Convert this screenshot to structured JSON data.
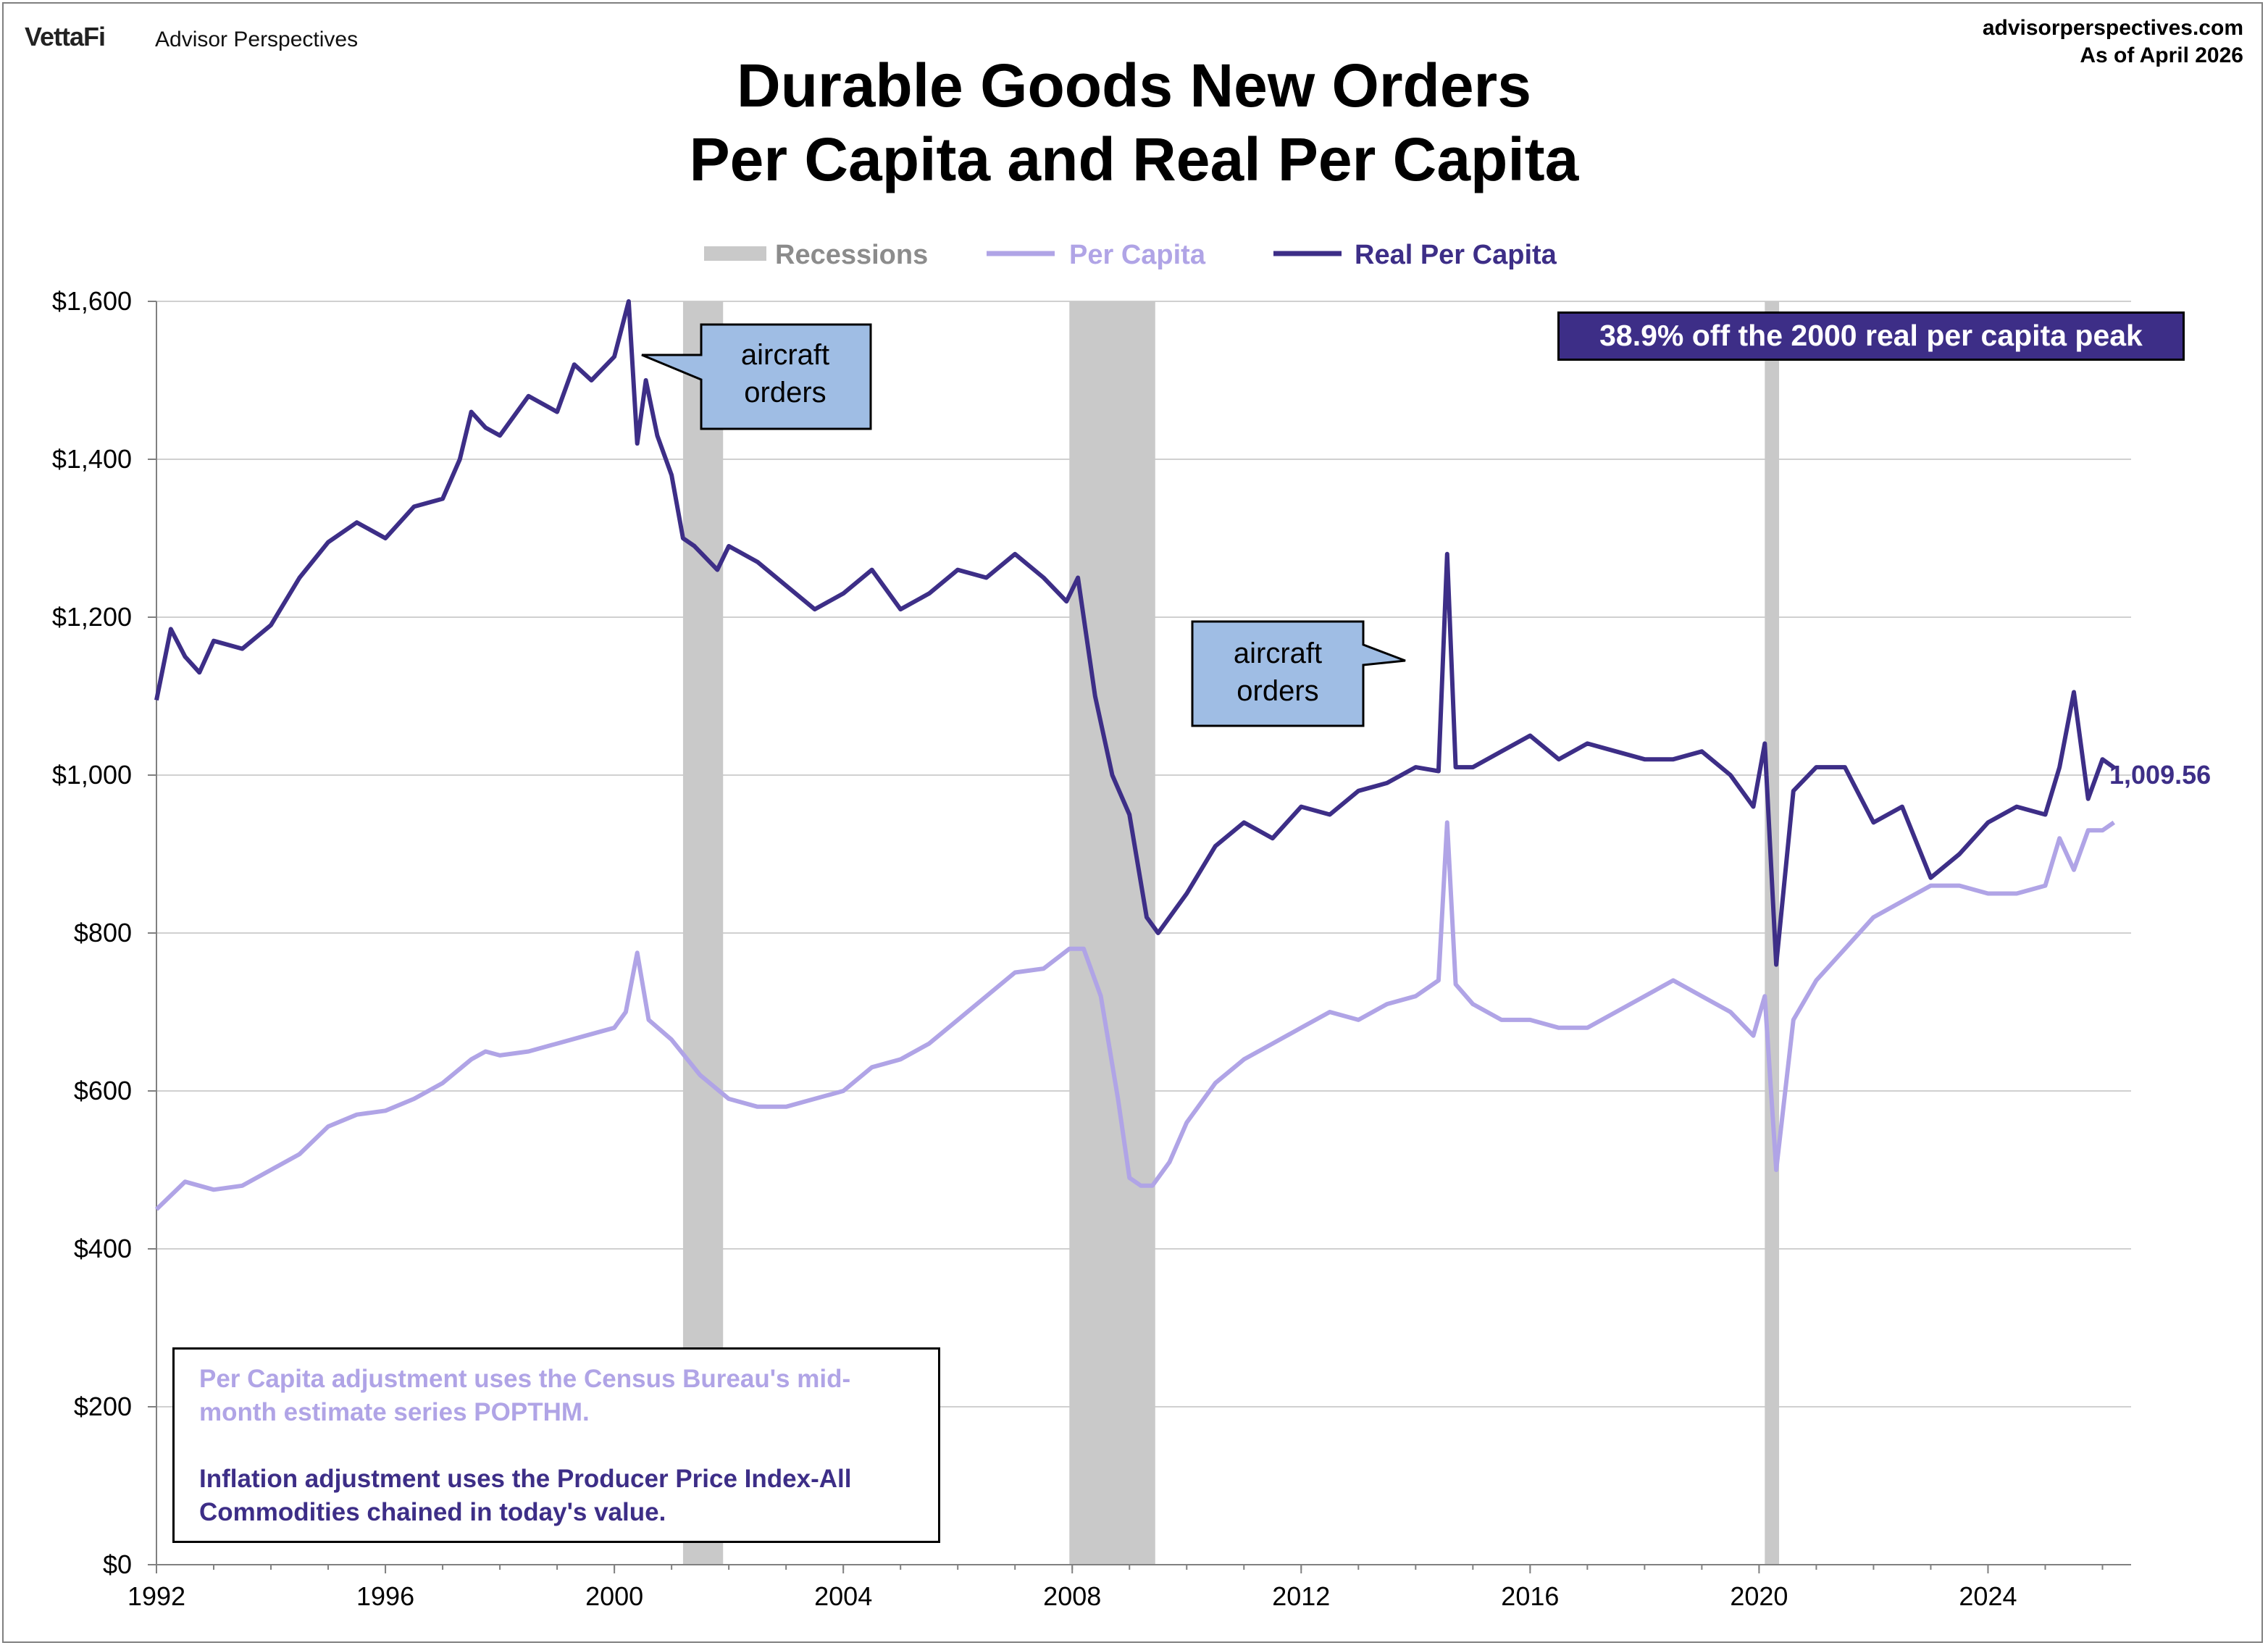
{
  "header": {
    "brand": "VettaFi",
    "brand_sub": "Advisor Perspectives",
    "site": "advisorperspectives.com",
    "as_of": "As of April 2026"
  },
  "colors": {
    "per_capita": "#b0a4e6",
    "real_per_capita": "#3d2e87",
    "recession": "#c9c9c9",
    "callout_fill": "#9fbde4"
  },
  "annotations": {
    "peak_note": "38.9% off the 2000 real per capita peak",
    "last_value": "1,009.56",
    "callout_1": "aircraft\norders",
    "callout_2": "aircraft\norders",
    "note_per_capita": "Per Capita adjustment uses the Census Bureau's mid-month estimate series POPTHM.",
    "note_inflation": "Inflation adjustment uses the Producer Price Index-All Commodities chained in today's value."
  },
  "chart_data": {
    "type": "line",
    "title": "Durable Goods New Orders",
    "subtitle": "Per Capita and Real Per Capita",
    "xlim": [
      1992,
      2026.5
    ],
    "ylim": [
      0,
      1600
    ],
    "x_ticks": [
      "1992",
      "1996",
      "2000",
      "2004",
      "2008",
      "2012",
      "2016",
      "2020",
      "2024"
    ],
    "y_ticks": [
      "$0",
      "$200",
      "$400",
      "$600",
      "$800",
      "$1,000",
      "$1,200",
      "$1,400",
      "$1,600"
    ],
    "grid": true,
    "legend": [
      "Recessions",
      "Per Capita",
      "Real Per Capita"
    ],
    "recessions": [
      [
        2001.2,
        2001.9
      ],
      [
        2007.95,
        2009.45
      ],
      [
        2020.1,
        2020.35
      ]
    ],
    "series": [
      {
        "name": "Real Per Capita",
        "x": [
          1992.0,
          1992.25,
          1992.5,
          1992.75,
          1993.0,
          1993.5,
          1994.0,
          1994.5,
          1995.0,
          1995.5,
          1996.0,
          1996.5,
          1997.0,
          1997.3,
          1997.5,
          1997.75,
          1998.0,
          1998.5,
          1999.0,
          1999.3,
          1999.6,
          2000.0,
          2000.25,
          2000.4,
          2000.55,
          2000.75,
          2001.0,
          2001.2,
          2001.4,
          2001.8,
          2002.0,
          2002.5,
          2003.0,
          2003.5,
          2004.0,
          2004.5,
          2005.0,
          2005.5,
          2006.0,
          2006.5,
          2007.0,
          2007.5,
          2007.9,
          2008.1,
          2008.4,
          2008.7,
          2009.0,
          2009.3,
          2009.5,
          2009.8,
          2010.0,
          2010.5,
          2011.0,
          2011.5,
          2012.0,
          2012.5,
          2013.0,
          2013.5,
          2014.0,
          2014.4,
          2014.55,
          2014.7,
          2015.0,
          2015.5,
          2016.0,
          2016.5,
          2017.0,
          2017.5,
          2018.0,
          2018.5,
          2019.0,
          2019.5,
          2019.9,
          2020.1,
          2020.3,
          2020.6,
          2021.0,
          2021.5,
          2022.0,
          2022.5,
          2023.0,
          2023.5,
          2024.0,
          2024.5,
          2025.0,
          2025.25,
          2025.5,
          2025.75,
          2026.0,
          2026.2
        ],
        "values": [
          1095,
          1185,
          1150,
          1130,
          1170,
          1160,
          1190,
          1250,
          1295,
          1320,
          1300,
          1340,
          1350,
          1400,
          1460,
          1440,
          1430,
          1480,
          1460,
          1520,
          1500,
          1530,
          1600,
          1420,
          1500,
          1430,
          1380,
          1300,
          1290,
          1260,
          1290,
          1270,
          1240,
          1210,
          1230,
          1260,
          1210,
          1230,
          1260,
          1250,
          1280,
          1250,
          1220,
          1250,
          1100,
          1000,
          950,
          820,
          800,
          830,
          850,
          910,
          940,
          920,
          960,
          950,
          980,
          990,
          1010,
          1005,
          1280,
          1010,
          1010,
          1030,
          1050,
          1020,
          1040,
          1030,
          1020,
          1020,
          1030,
          1000,
          960,
          1040,
          760,
          980,
          1010,
          1010,
          940,
          960,
          870,
          900,
          940,
          960,
          950,
          1010,
          1105,
          970,
          1020,
          1009.56
        ]
      },
      {
        "name": "Per Capita",
        "x": [
          1992.0,
          1992.5,
          1993.0,
          1993.5,
          1994.0,
          1994.5,
          1995.0,
          1995.5,
          1996.0,
          1996.5,
          1997.0,
          1997.5,
          1997.75,
          1998.0,
          1998.5,
          1999.0,
          1999.5,
          2000.0,
          2000.2,
          2000.4,
          2000.6,
          2001.0,
          2001.5,
          2002.0,
          2002.5,
          2003.0,
          2003.5,
          2004.0,
          2004.5,
          2005.0,
          2005.5,
          2006.0,
          2006.5,
          2007.0,
          2007.5,
          2007.95,
          2008.2,
          2008.5,
          2008.8,
          2009.0,
          2009.2,
          2009.4,
          2009.7,
          2010.0,
          2010.5,
          2011.0,
          2011.5,
          2012.0,
          2012.5,
          2013.0,
          2013.5,
          2014.0,
          2014.4,
          2014.55,
          2014.7,
          2015.0,
          2015.5,
          2016.0,
          2016.5,
          2017.0,
          2017.5,
          2018.0,
          2018.5,
          2019.0,
          2019.5,
          2019.9,
          2020.1,
          2020.3,
          2020.6,
          2021.0,
          2021.5,
          2022.0,
          2022.5,
          2023.0,
          2023.5,
          2024.0,
          2024.5,
          2025.0,
          2025.25,
          2025.5,
          2025.75,
          2026.0,
          2026.2
        ],
        "values": [
          450,
          485,
          475,
          480,
          500,
          520,
          555,
          570,
          575,
          590,
          610,
          640,
          650,
          645,
          650,
          660,
          670,
          680,
          700,
          775,
          690,
          665,
          620,
          590,
          580,
          580,
          590,
          600,
          630,
          640,
          660,
          690,
          720,
          750,
          755,
          780,
          780,
          720,
          590,
          490,
          480,
          480,
          510,
          560,
          610,
          640,
          660,
          680,
          700,
          690,
          710,
          720,
          740,
          940,
          735,
          710,
          690,
          690,
          680,
          680,
          700,
          720,
          740,
          720,
          700,
          670,
          720,
          500,
          690,
          740,
          780,
          820,
          840,
          860,
          860,
          850,
          850,
          860,
          920,
          880,
          930,
          930,
          940
        ]
      }
    ]
  }
}
